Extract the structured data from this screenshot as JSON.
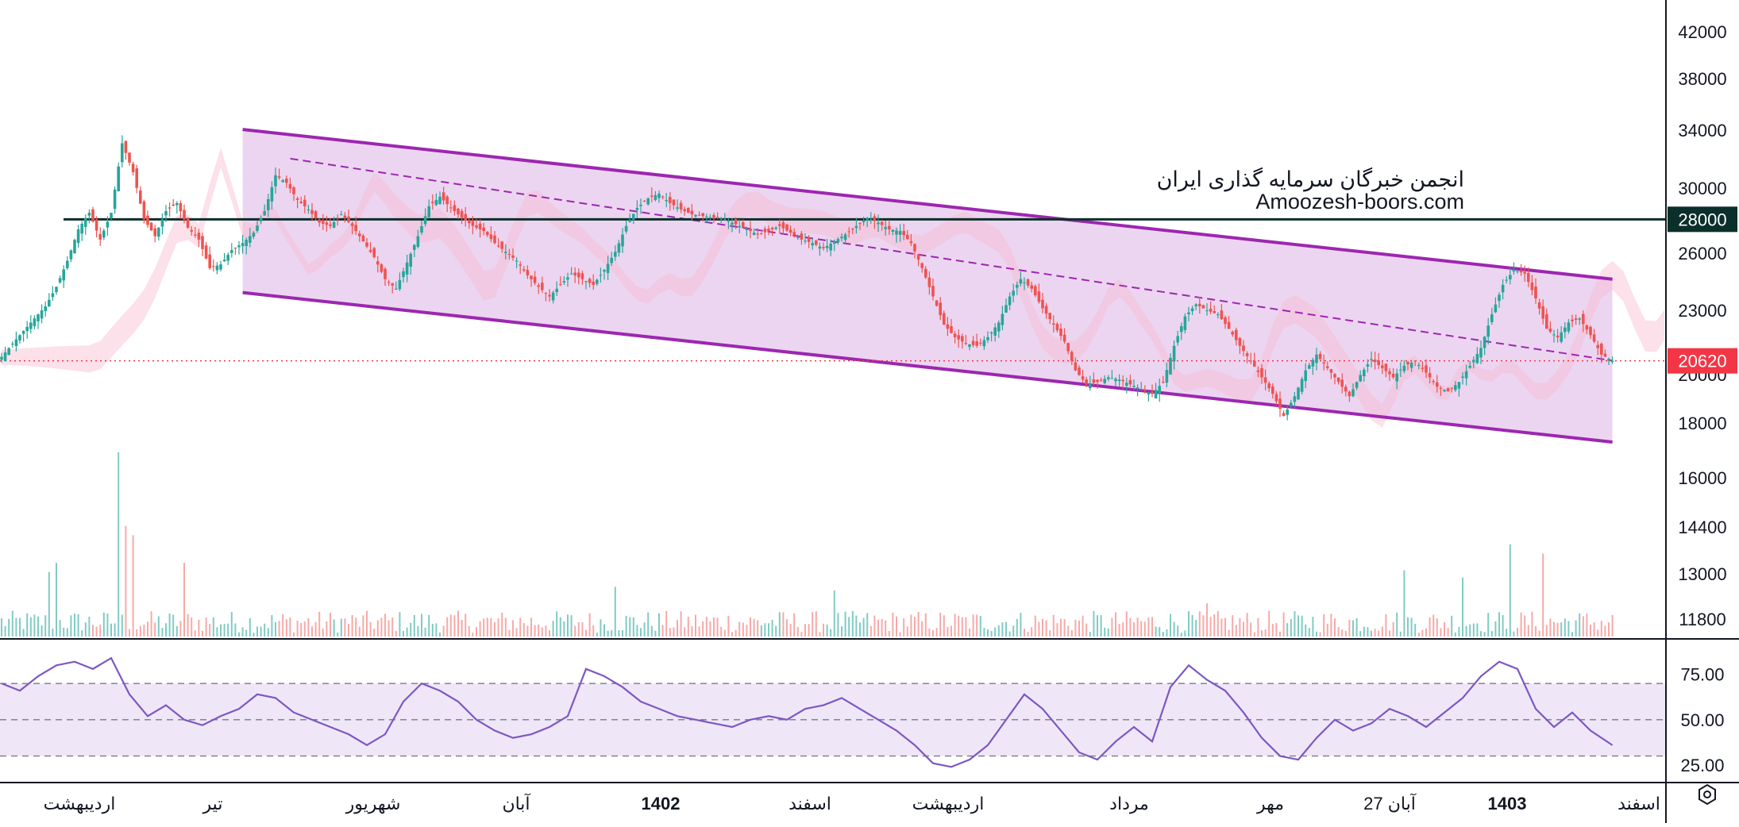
{
  "watermark": {
    "line1": "انجمن خبرگان سرمایه گذاری ایران",
    "line2": "Amoozesh-boors.com"
  },
  "colors": {
    "up": "#26a69a",
    "down": "#ef5350",
    "channel": "#9c27b0",
    "channel_fill": "#ebd3ef",
    "resistance": "#0b2f2a",
    "last_price": "#f23645",
    "rsi_line": "#7e57c2",
    "rsi_fill": "#efe7f8"
  },
  "chart_data": [
    {
      "type": "candlestick",
      "price_axis": {
        "ticks": [
          "42000",
          "38000",
          "34000",
          "30000",
          "26000",
          "23000",
          "20000",
          "18000",
          "16000",
          "14400",
          "13000",
          "11800"
        ],
        "scale": "log",
        "ylim": [
          11300,
          44000
        ]
      },
      "time_axis": {
        "labels": [
          "اردیبهشت",
          "تیر",
          "شهریور",
          "آبان",
          "1402",
          "اسفند",
          "اردیبهشت",
          "مرداد",
          "مهر",
          "27 آبان",
          "1403",
          "اسفند"
        ],
        "bold": [
          false,
          false,
          false,
          false,
          true,
          false,
          false,
          false,
          false,
          false,
          true,
          false
        ]
      },
      "series": [
        {
          "name": "",
          "close_path": [
            [
              0,
              20800
            ],
            [
              3,
              21400
            ],
            [
              6,
              22000
            ],
            [
              9,
              22600
            ],
            [
              12,
              23200
            ],
            [
              15,
              24200
            ],
            [
              18,
              25600
            ],
            [
              21,
              27400
            ],
            [
              24,
              28400
            ],
            [
              27,
              26800
            ],
            [
              30,
              28400
            ],
            [
              33,
              33000
            ],
            [
              36,
              31000
            ],
            [
              39,
              28000
            ],
            [
              42,
              27000
            ],
            [
              45,
              28500
            ],
            [
              48,
              29000
            ],
            [
              51,
              27500
            ],
            [
              54,
              26800
            ],
            [
              57,
              25200
            ],
            [
              60,
              25400
            ],
            [
              63,
              26200
            ],
            [
              66,
              26600
            ],
            [
              69,
              27200
            ],
            [
              72,
              28500
            ],
            [
              75,
              30800
            ],
            [
              78,
              30300
            ],
            [
              81,
              29200
            ],
            [
              84,
              28600
            ],
            [
              87,
              27800
            ],
            [
              90,
              27600
            ],
            [
              93,
              28300
            ],
            [
              96,
              27600
            ],
            [
              99,
              26700
            ],
            [
              102,
              25800
            ],
            [
              105,
              24600
            ],
            [
              108,
              24100
            ],
            [
              111,
              25500
            ],
            [
              114,
              27000
            ],
            [
              117,
              28800
            ],
            [
              120,
              29400
            ],
            [
              123,
              28700
            ],
            [
              126,
              28100
            ],
            [
              129,
              27600
            ],
            [
              132,
              27300
            ],
            [
              135,
              26600
            ],
            [
              138,
              26100
            ],
            [
              141,
              25600
            ],
            [
              144,
              24800
            ],
            [
              147,
              24200
            ],
            [
              150,
              23700
            ],
            [
              153,
              24300
            ],
            [
              156,
              24900
            ],
            [
              159,
              24600
            ],
            [
              162,
              24300
            ],
            [
              165,
              25100
            ],
            [
              168,
              26100
            ],
            [
              171,
              27600
            ],
            [
              174,
              28700
            ],
            [
              177,
              29300
            ],
            [
              180,
              29600
            ],
            [
              183,
              29000
            ],
            [
              186,
              28600
            ],
            [
              189,
              28300
            ],
            [
              192,
              28200
            ],
            [
              195,
              28100
            ],
            [
              198,
              28000
            ],
            [
              201,
              27700
            ],
            [
              204,
              27400
            ],
            [
              207,
              27100
            ],
            [
              210,
              27300
            ],
            [
              213,
              27600
            ],
            [
              216,
              27200
            ],
            [
              219,
              26800
            ],
            [
              222,
              26600
            ],
            [
              225,
              26300
            ],
            [
              228,
              26700
            ],
            [
              231,
              27100
            ],
            [
              234,
              27600
            ],
            [
              237,
              28100
            ],
            [
              240,
              27800
            ],
            [
              243,
              27400
            ],
            [
              246,
              27300
            ],
            [
              249,
              26600
            ],
            [
              252,
              25200
            ],
            [
              255,
              23700
            ],
            [
              258,
              22300
            ],
            [
              261,
              21700
            ],
            [
              264,
              21400
            ],
            [
              267,
              21300
            ],
            [
              270,
              21700
            ],
            [
              273,
              22400
            ],
            [
              276,
              23700
            ],
            [
              279,
              24600
            ],
            [
              282,
              24100
            ],
            [
              285,
              23100
            ],
            [
              288,
              22300
            ],
            [
              291,
              21500
            ],
            [
              294,
              20200
            ],
            [
              297,
              19600
            ],
            [
              300,
              19700
            ],
            [
              303,
              19900
            ],
            [
              306,
              19800
            ],
            [
              309,
              19600
            ],
            [
              312,
              19400
            ],
            [
              315,
              19200
            ],
            [
              318,
              19700
            ],
            [
              321,
              21300
            ],
            [
              324,
              22700
            ],
            [
              327,
              23300
            ],
            [
              330,
              23000
            ],
            [
              333,
              22800
            ],
            [
              336,
              22100
            ],
            [
              339,
              21300
            ],
            [
              342,
              20600
            ],
            [
              345,
              19900
            ],
            [
              348,
              19200
            ],
            [
              351,
              18300
            ],
            [
              354,
              19100
            ],
            [
              357,
              20200
            ],
            [
              360,
              20900
            ],
            [
              363,
              20300
            ],
            [
              366,
              19700
            ],
            [
              369,
              19100
            ],
            [
              372,
              20000
            ],
            [
              375,
              20700
            ],
            [
              378,
              20300
            ],
            [
              381,
              19900
            ],
            [
              384,
              20400
            ],
            [
              387,
              20600
            ],
            [
              390,
              20100
            ],
            [
              393,
              19500
            ],
            [
              396,
              19300
            ],
            [
              399,
              19700
            ],
            [
              402,
              20400
            ],
            [
              405,
              21200
            ],
            [
              408,
              22800
            ],
            [
              411,
              24300
            ],
            [
              414,
              25100
            ],
            [
              417,
              24900
            ],
            [
              420,
              23600
            ],
            [
              423,
              22100
            ],
            [
              426,
              21700
            ],
            [
              429,
              22400
            ],
            [
              432,
              22600
            ],
            [
              435,
              21800
            ],
            [
              438,
              20900
            ],
            [
              441,
              20620
            ]
          ]
        }
      ],
      "channel": {
        "upper": [
          [
            66,
            34000
          ],
          [
            441,
            24600
          ]
        ],
        "lower": [
          [
            66,
            23900
          ],
          [
            441,
            17300
          ]
        ],
        "midline_dashed": true
      },
      "horizontal_levels": [
        {
          "value": 28000,
          "label": "28000",
          "style": "solid"
        },
        {
          "value": 20620,
          "label": "20620",
          "style": "dotted",
          "last_price": true
        }
      ]
    },
    {
      "type": "bar",
      "name": "",
      "note_volume": "volume histogram, relative heights 0-1",
      "spikes": [
        [
          32,
          1.0
        ],
        [
          34,
          0.6
        ],
        [
          36,
          0.55
        ],
        [
          15,
          0.4
        ],
        [
          13,
          0.35
        ],
        [
          50,
          0.4
        ],
        [
          168,
          0.27
        ],
        [
          228,
          0.25
        ],
        [
          330,
          0.18
        ],
        [
          384,
          0.36
        ],
        [
          400,
          0.32
        ],
        [
          413,
          0.5
        ],
        [
          422,
          0.45
        ]
      ]
    },
    {
      "type": "line",
      "name": "",
      "axis": {
        "ticks": [
          "75.00",
          "50.00",
          "25.00"
        ],
        "ylim": [
          18,
          88
        ],
        "band": [
          30,
          70
        ]
      },
      "values": [
        [
          0,
          70
        ],
        [
          5,
          66
        ],
        [
          10,
          74
        ],
        [
          15,
          80
        ],
        [
          20,
          82
        ],
        [
          25,
          78
        ],
        [
          30,
          84
        ],
        [
          35,
          64
        ],
        [
          40,
          52
        ],
        [
          45,
          58
        ],
        [
          50,
          50
        ],
        [
          55,
          47
        ],
        [
          60,
          52
        ],
        [
          65,
          56
        ],
        [
          70,
          64
        ],
        [
          75,
          62
        ],
        [
          80,
          54
        ],
        [
          85,
          50
        ],
        [
          90,
          46
        ],
        [
          95,
          42
        ],
        [
          100,
          36
        ],
        [
          105,
          42
        ],
        [
          110,
          60
        ],
        [
          115,
          70
        ],
        [
          120,
          66
        ],
        [
          125,
          60
        ],
        [
          130,
          50
        ],
        [
          135,
          44
        ],
        [
          140,
          40
        ],
        [
          145,
          42
        ],
        [
          150,
          46
        ],
        [
          155,
          52
        ],
        [
          160,
          78
        ],
        [
          165,
          74
        ],
        [
          170,
          68
        ],
        [
          175,
          60
        ],
        [
          180,
          56
        ],
        [
          185,
          52
        ],
        [
          190,
          50
        ],
        [
          195,
          48
        ],
        [
          200,
          46
        ],
        [
          205,
          50
        ],
        [
          210,
          52
        ],
        [
          215,
          50
        ],
        [
          220,
          56
        ],
        [
          225,
          58
        ],
        [
          230,
          62
        ],
        [
          235,
          56
        ],
        [
          240,
          50
        ],
        [
          245,
          44
        ],
        [
          250,
          36
        ],
        [
          255,
          26
        ],
        [
          260,
          24
        ],
        [
          265,
          28
        ],
        [
          270,
          36
        ],
        [
          275,
          50
        ],
        [
          280,
          64
        ],
        [
          285,
          56
        ],
        [
          290,
          44
        ],
        [
          295,
          32
        ],
        [
          300,
          28
        ],
        [
          305,
          38
        ],
        [
          310,
          46
        ],
        [
          315,
          38
        ],
        [
          320,
          68
        ],
        [
          325,
          80
        ],
        [
          330,
          72
        ],
        [
          335,
          66
        ],
        [
          340,
          54
        ],
        [
          345,
          40
        ],
        [
          350,
          30
        ],
        [
          355,
          28
        ],
        [
          360,
          40
        ],
        [
          365,
          50
        ],
        [
          370,
          44
        ],
        [
          375,
          48
        ],
        [
          380,
          56
        ],
        [
          385,
          52
        ],
        [
          390,
          46
        ],
        [
          395,
          54
        ],
        [
          400,
          62
        ],
        [
          405,
          74
        ],
        [
          410,
          82
        ],
        [
          415,
          78
        ],
        [
          420,
          56
        ],
        [
          425,
          46
        ],
        [
          430,
          54
        ],
        [
          435,
          44
        ],
        [
          441,
          36
        ]
      ]
    }
  ]
}
